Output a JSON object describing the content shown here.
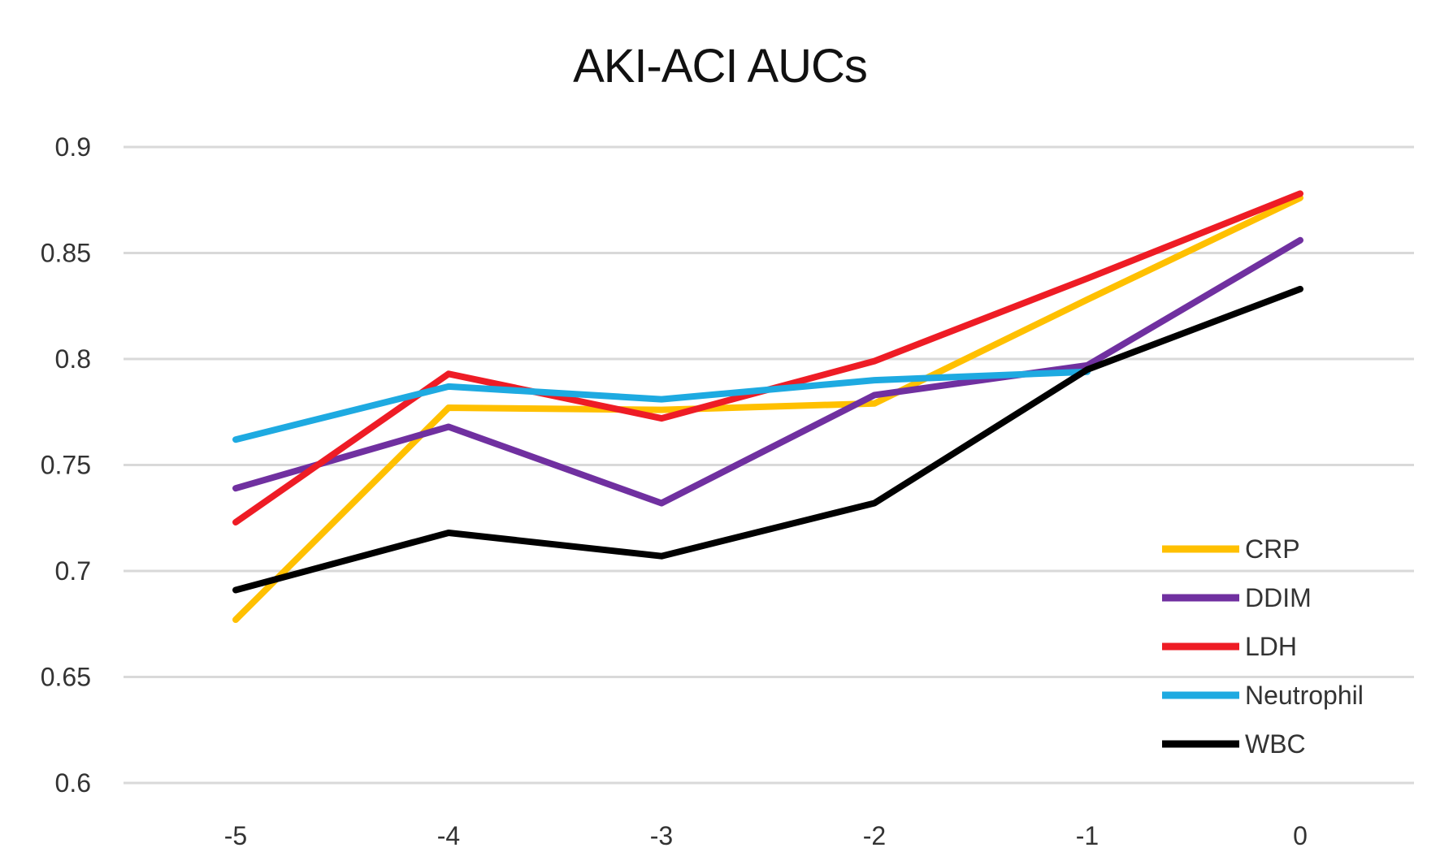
{
  "chart_data": {
    "type": "line",
    "title": "AKI-ACI AUCs",
    "xlabel": "",
    "ylabel": "",
    "x": [
      -5,
      -4,
      -3,
      -2,
      -1,
      0
    ],
    "x_tick_labels": [
      "-5",
      "-4",
      "-3",
      "-2",
      "-1",
      "0"
    ],
    "y_tick_labels": [
      "0.6",
      "0.65",
      "0.7",
      "0.75",
      "0.8",
      "0.85",
      "0.9"
    ],
    "ylim": [
      0.6,
      0.9
    ],
    "grid": "horizontal",
    "legend_position": "inside-lower-right",
    "series": [
      {
        "name": "CRP",
        "color": "#FFC000",
        "values": [
          0.677,
          0.777,
          0.776,
          0.779,
          0.828,
          0.876
        ]
      },
      {
        "name": "DDIM",
        "color": "#7030A0",
        "values": [
          0.739,
          0.768,
          0.732,
          0.783,
          0.797,
          0.856
        ]
      },
      {
        "name": "LDH",
        "color": "#EE1C25",
        "values": [
          0.723,
          0.793,
          0.772,
          0.799,
          0.838,
          0.878
        ]
      },
      {
        "name": "Neutrophil",
        "color": "#1EAAE1",
        "values": [
          0.762,
          0.787,
          0.781,
          0.79,
          0.794,
          null
        ]
      },
      {
        "name": "WBC",
        "color": "#000000",
        "values": [
          0.691,
          0.718,
          0.707,
          0.732,
          0.795,
          0.833
        ]
      }
    ]
  }
}
